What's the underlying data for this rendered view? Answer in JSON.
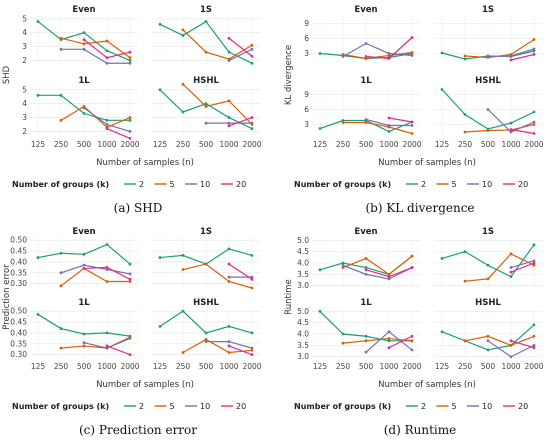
{
  "colors": {
    "2": "#1b9e77",
    "5": "#d95f02",
    "10": "#7570b3",
    "20": "#e7298a"
  },
  "legend": {
    "title": "Number of groups (k)",
    "items": [
      "2",
      "5",
      "10",
      "20"
    ]
  },
  "chart_data": [
    {
      "type": "line",
      "caption": "(a) SHD",
      "ylabel": "SHD",
      "xlabel": "Number of samples (n)",
      "x": [
        125,
        250,
        500,
        1000,
        2000
      ],
      "yticks": [
        2,
        3,
        4,
        5
      ],
      "ylim": [
        1.6,
        5.2
      ],
      "panels": [
        {
          "title": "Even",
          "series": [
            {
              "name": "2",
              "values": [
                4.8,
                3.5,
                4.0,
                2.7,
                2.0
              ]
            },
            {
              "name": "5",
              "values": [
                null,
                3.6,
                3.2,
                3.4,
                2.2
              ]
            },
            {
              "name": "10",
              "values": [
                null,
                2.8,
                2.8,
                1.8,
                1.8
              ]
            },
            {
              "name": "20",
              "values": [
                null,
                null,
                3.5,
                2.2,
                2.6
              ]
            }
          ]
        },
        {
          "title": "1S",
          "series": [
            {
              "name": "2",
              "values": [
                4.6,
                3.8,
                4.8,
                2.6,
                1.8
              ]
            },
            {
              "name": "5",
              "values": [
                null,
                4.2,
                2.6,
                2.1,
                3.1
              ]
            },
            {
              "name": "10",
              "values": [
                null,
                null,
                null,
                2.0,
                2.8
              ]
            },
            {
              "name": "20",
              "values": [
                null,
                null,
                null,
                3.6,
                2.3
              ]
            }
          ]
        },
        {
          "title": "1L",
          "series": [
            {
              "name": "2",
              "values": [
                4.6,
                4.6,
                3.3,
                2.8,
                2.8
              ]
            },
            {
              "name": "5",
              "values": [
                null,
                2.8,
                3.8,
                2.3,
                3.0
              ]
            },
            {
              "name": "10",
              "values": [
                null,
                null,
                3.7,
                2.5,
                2.0
              ]
            },
            {
              "name": "20",
              "values": [
                null,
                null,
                null,
                2.2,
                1.5
              ]
            }
          ]
        },
        {
          "title": "HSHL",
          "series": [
            {
              "name": "2",
              "values": [
                5.0,
                3.4,
                4.0,
                3.0,
                2.2
              ]
            },
            {
              "name": "5",
              "values": [
                null,
                5.4,
                3.8,
                4.2,
                2.5
              ]
            },
            {
              "name": "10",
              "values": [
                null,
                null,
                2.6,
                2.6,
                2.6
              ]
            },
            {
              "name": "20",
              "values": [
                null,
                null,
                null,
                2.4,
                3.0
              ]
            }
          ]
        }
      ]
    },
    {
      "type": "line",
      "caption": "(b) KL divergence",
      "ylabel": "KL divergence",
      "xlabel": "Number of samples (n)",
      "x": [
        125,
        250,
        500,
        1000,
        2000
      ],
      "yticks": [
        3,
        6,
        9
      ],
      "ylim": [
        0.5,
        10.5
      ],
      "panels": [
        {
          "title": "Even",
          "series": [
            {
              "name": "2",
              "values": [
                3.0,
                2.6,
                2.0,
                2.2,
                3.0
              ]
            },
            {
              "name": "5",
              "values": [
                null,
                2.8,
                2.0,
                2.6,
                3.2
              ]
            },
            {
              "name": "10",
              "values": [
                null,
                2.4,
                5.0,
                3.0,
                2.6
              ]
            },
            {
              "name": "20",
              "values": [
                null,
                null,
                2.4,
                2.0,
                6.2
              ]
            }
          ]
        },
        {
          "title": "1S",
          "series": [
            {
              "name": "2",
              "values": [
                3.1,
                1.9,
                2.5,
                2.4,
                3.5
              ]
            },
            {
              "name": "5",
              "values": [
                null,
                2.5,
                2.2,
                2.8,
                5.8
              ]
            },
            {
              "name": "10",
              "values": [
                null,
                null,
                2.4,
                2.5,
                3.9
              ]
            },
            {
              "name": "20",
              "values": [
                null,
                null,
                null,
                1.7,
                2.8
              ]
            }
          ]
        },
        {
          "title": "1L",
          "series": [
            {
              "name": "2",
              "values": [
                2.2,
                3.8,
                3.8,
                1.6,
                3.5
              ]
            },
            {
              "name": "5",
              "values": [
                null,
                3.4,
                3.4,
                2.5,
                1.2
              ]
            },
            {
              "name": "10",
              "values": [
                null,
                null,
                4.0,
                2.8,
                2.8
              ]
            },
            {
              "name": "20",
              "values": [
                null,
                null,
                null,
                4.3,
                3.5
              ]
            }
          ]
        },
        {
          "title": "HSHL",
          "series": [
            {
              "name": "2",
              "values": [
                10.0,
                5.0,
                2.1,
                3.3,
                5.5
              ]
            },
            {
              "name": "5",
              "values": [
                null,
                1.5,
                1.8,
                1.9,
                3.0
              ]
            },
            {
              "name": "10",
              "values": [
                null,
                null,
                6.0,
                1.5,
                3.5
              ]
            },
            {
              "name": "20",
              "values": [
                null,
                null,
                null,
                2.0,
                1.2
              ]
            }
          ]
        }
      ]
    },
    {
      "type": "line",
      "caption": "(c) Prediction error",
      "ylabel": "Prediction error",
      "xlabel": "Number of samples (n)",
      "x": [
        125,
        250,
        500,
        1000,
        2000
      ],
      "yticks": [
        0.3,
        0.35,
        0.4,
        0.45,
        0.5
      ],
      "ytick_labels": [
        "0.30",
        "0.35",
        "0.40",
        "0.45",
        "0.50"
      ],
      "ylim": [
        0.28,
        0.51
      ],
      "panels": [
        {
          "title": "Even",
          "series": [
            {
              "name": "2",
              "values": [
                0.42,
                0.44,
                0.435,
                0.48,
                0.39
              ]
            },
            {
              "name": "5",
              "values": [
                null,
                0.29,
                0.37,
                0.31,
                0.31
              ]
            },
            {
              "name": "10",
              "values": [
                null,
                0.35,
                0.385,
                0.365,
                0.345
              ]
            },
            {
              "name": "20",
              "values": [
                null,
                null,
                0.37,
                0.375,
                0.32
              ]
            }
          ]
        },
        {
          "title": "1S",
          "series": [
            {
              "name": "2",
              "values": [
                0.42,
                0.43,
                0.39,
                0.46,
                0.43
              ]
            },
            {
              "name": "5",
              "values": [
                null,
                0.365,
                0.39,
                0.31,
                0.28
              ]
            },
            {
              "name": "10",
              "values": [
                null,
                null,
                null,
                0.33,
                0.33
              ]
            },
            {
              "name": "20",
              "values": [
                null,
                null,
                null,
                0.39,
                0.32
              ]
            }
          ]
        },
        {
          "title": "1L",
          "series": [
            {
              "name": "2",
              "values": [
                0.485,
                0.42,
                0.395,
                0.4,
                0.385
              ]
            },
            {
              "name": "5",
              "values": [
                null,
                0.33,
                0.34,
                0.33,
                0.38
              ]
            },
            {
              "name": "10",
              "values": [
                null,
                null,
                0.355,
                0.33,
                0.375
              ]
            },
            {
              "name": "20",
              "values": [
                null,
                null,
                null,
                0.34,
                0.3
              ]
            }
          ]
        },
        {
          "title": "HSHL",
          "series": [
            {
              "name": "2",
              "values": [
                0.43,
                0.5,
                0.4,
                0.43,
                0.4
              ]
            },
            {
              "name": "5",
              "values": [
                null,
                0.31,
                0.37,
                0.31,
                0.32
              ]
            },
            {
              "name": "10",
              "values": [
                null,
                null,
                0.36,
                0.36,
                0.33
              ]
            },
            {
              "name": "20",
              "values": [
                null,
                null,
                null,
                0.34,
                0.3
              ]
            }
          ]
        }
      ]
    },
    {
      "type": "line",
      "caption": "(d) Runtime",
      "ylabel": "Runtime",
      "xlabel": "Number of samples (n)",
      "x": [
        125,
        250,
        500,
        1000,
        2000
      ],
      "yticks": [
        3.0,
        3.5,
        4.0,
        4.5,
        5.0
      ],
      "ytick_labels": [
        "3.0",
        "3.5",
        "4.0",
        "4.5",
        "5.0"
      ],
      "ylim": [
        2.9,
        5.1
      ],
      "panels": [
        {
          "title": "Even",
          "series": [
            {
              "name": "2",
              "values": [
                3.7,
                4.0,
                3.8,
                3.5,
                4.3
              ]
            },
            {
              "name": "5",
              "values": [
                null,
                3.8,
                4.2,
                3.5,
                4.3
              ]
            },
            {
              "name": "10",
              "values": [
                null,
                3.9,
                3.5,
                3.3,
                3.8
              ]
            },
            {
              "name": "20",
              "values": [
                null,
                null,
                3.7,
                3.4,
                3.8
              ]
            }
          ]
        },
        {
          "title": "1S",
          "series": [
            {
              "name": "2",
              "values": [
                4.2,
                4.5,
                3.9,
                3.4,
                4.8
              ]
            },
            {
              "name": "5",
              "values": [
                null,
                3.2,
                3.3,
                4.4,
                3.9
              ]
            },
            {
              "name": "10",
              "values": [
                null,
                null,
                null,
                3.8,
                4.1
              ]
            },
            {
              "name": "20",
              "values": [
                null,
                null,
                null,
                3.6,
                4.0
              ]
            }
          ]
        },
        {
          "title": "1L",
          "series": [
            {
              "name": "2",
              "values": [
                5.0,
                4.0,
                3.9,
                3.7,
                3.7
              ]
            },
            {
              "name": "5",
              "values": [
                null,
                3.6,
                3.7,
                3.8,
                3.7
              ]
            },
            {
              "name": "10",
              "values": [
                null,
                null,
                3.2,
                4.1,
                3.3
              ]
            },
            {
              "name": "20",
              "values": [
                null,
                null,
                null,
                3.4,
                3.9
              ]
            }
          ]
        },
        {
          "title": "HSHL",
          "series": [
            {
              "name": "2",
              "values": [
                4.1,
                3.7,
                3.3,
                3.5,
                4.4
              ]
            },
            {
              "name": "5",
              "values": [
                null,
                3.7,
                3.9,
                3.5,
                3.9
              ]
            },
            {
              "name": "10",
              "values": [
                null,
                null,
                3.7,
                3.0,
                3.5
              ]
            },
            {
              "name": "20",
              "values": [
                null,
                null,
                null,
                3.7,
                3.4
              ]
            }
          ]
        }
      ]
    }
  ]
}
